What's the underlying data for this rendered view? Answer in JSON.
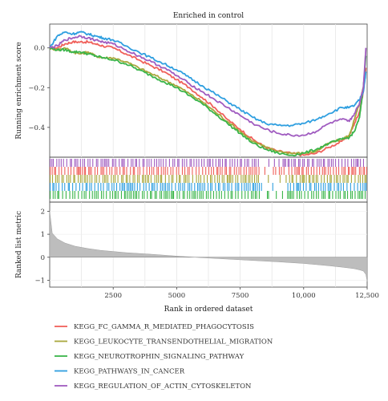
{
  "chart_data": {
    "type": "line",
    "title": "Enriched in control",
    "xlabel": "Rank in ordered dataset",
    "ylabel_top": "Running enrichment score",
    "ylabel_bottom": "Ranked list metric",
    "xlim": [
      0,
      12500
    ],
    "x_ticks": [
      2500,
      5000,
      7500,
      10000,
      12500
    ],
    "x_tick_labels": [
      "2500",
      "5000",
      "7500",
      "10,000",
      "12,500"
    ],
    "es_ylim": [
      -0.55,
      0.12
    ],
    "es_ticks": [
      0.0,
      -0.2,
      -0.4
    ],
    "es_tick_labels": [
      "0.0",
      "−0.2",
      "−0.4"
    ],
    "metric_ylim": [
      -1.3,
      2.4
    ],
    "metric_ticks": [
      2,
      1,
      0,
      -1
    ],
    "metric_tick_labels": [
      "2",
      "1",
      "0",
      "−1"
    ],
    "grid": true,
    "legend_position": "bottom",
    "series": [
      {
        "name": "KEGG_FC_GAMMA_R_MEDIATED_PHAGOCYTOSIS",
        "color": "#f0605a",
        "x": [
          0,
          300,
          600,
          900,
          1200,
          1500,
          1800,
          2100,
          2500,
          3000,
          3500,
          4000,
          4500,
          5000,
          5500,
          6000,
          6500,
          7000,
          7500,
          8000,
          8500,
          9000,
          9500,
          10000,
          10500,
          11000,
          11500,
          11800,
          12000,
          12200,
          12350,
          12450
        ],
        "y": [
          0.0,
          0.0,
          0.02,
          0.03,
          0.03,
          0.03,
          0.02,
          0.01,
          0.0,
          -0.03,
          -0.06,
          -0.09,
          -0.12,
          -0.16,
          -0.2,
          -0.25,
          -0.3,
          -0.36,
          -0.41,
          -0.46,
          -0.5,
          -0.52,
          -0.53,
          -0.54,
          -0.53,
          -0.5,
          -0.47,
          -0.44,
          -0.38,
          -0.32,
          -0.22,
          -0.1
        ]
      },
      {
        "name": "KEGG_LEUKOCYTE_TRANSENDOTHELIAL_MIGRATION",
        "color": "#a9a73c",
        "x": [
          0,
          300,
          600,
          900,
          1200,
          1500,
          1800,
          2100,
          2500,
          3000,
          3500,
          4000,
          4500,
          5000,
          5500,
          6000,
          6500,
          7000,
          7500,
          8000,
          8500,
          9000,
          9500,
          10000,
          10500,
          11000,
          11500,
          11800,
          12000,
          12200,
          12350,
          12450
        ],
        "y": [
          0.0,
          -0.01,
          0.0,
          -0.02,
          -0.03,
          -0.02,
          -0.04,
          -0.05,
          -0.05,
          -0.07,
          -0.1,
          -0.13,
          -0.16,
          -0.19,
          -0.23,
          -0.27,
          -0.32,
          -0.37,
          -0.42,
          -0.47,
          -0.5,
          -0.52,
          -0.53,
          -0.53,
          -0.52,
          -0.48,
          -0.46,
          -0.44,
          -0.36,
          -0.28,
          -0.2,
          -0.12
        ]
      },
      {
        "name": "KEGG_NEUROTROPHIN_SIGNALING_PATHWAY",
        "color": "#3ab54a",
        "x": [
          0,
          300,
          600,
          900,
          1200,
          1500,
          1800,
          2100,
          2500,
          3000,
          3500,
          4000,
          4500,
          5000,
          5500,
          6000,
          6500,
          7000,
          7500,
          8000,
          8500,
          9000,
          9500,
          10000,
          10500,
          11000,
          11500,
          11800,
          12000,
          12200,
          12350,
          12450
        ],
        "y": [
          0.0,
          -0.01,
          -0.01,
          -0.02,
          -0.02,
          -0.03,
          -0.04,
          -0.05,
          -0.06,
          -0.08,
          -0.11,
          -0.14,
          -0.17,
          -0.2,
          -0.24,
          -0.28,
          -0.33,
          -0.38,
          -0.43,
          -0.48,
          -0.51,
          -0.53,
          -0.54,
          -0.53,
          -0.51,
          -0.48,
          -0.46,
          -0.45,
          -0.42,
          -0.35,
          -0.2,
          -0.04
        ]
      },
      {
        "name": "KEGG_PATHWAYS_IN_CANCER",
        "color": "#2f9fe0",
        "x": [
          0,
          300,
          600,
          900,
          1200,
          1500,
          1800,
          2100,
          2500,
          3000,
          3500,
          4000,
          4500,
          5000,
          5500,
          6000,
          6500,
          7000,
          7500,
          8000,
          8500,
          9000,
          9500,
          10000,
          10500,
          11000,
          11500,
          11800,
          12000,
          12200,
          12350,
          12450
        ],
        "y": [
          0.0,
          0.06,
          0.08,
          0.07,
          0.08,
          0.07,
          0.06,
          0.05,
          0.04,
          0.01,
          -0.02,
          -0.05,
          -0.08,
          -0.11,
          -0.15,
          -0.19,
          -0.23,
          -0.27,
          -0.31,
          -0.35,
          -0.38,
          -0.39,
          -0.39,
          -0.38,
          -0.36,
          -0.33,
          -0.3,
          -0.3,
          -0.29,
          -0.26,
          -0.22,
          -0.12
        ]
      },
      {
        "name": "KEGG_REGULATION_OF_ACTIN_CYTOSKELETON",
        "color": "#a05cc0",
        "x": [
          0,
          300,
          600,
          900,
          1200,
          1500,
          1800,
          2100,
          2500,
          3000,
          3500,
          4000,
          4500,
          5000,
          5500,
          6000,
          6500,
          7000,
          7500,
          8000,
          8500,
          9000,
          9500,
          10000,
          10500,
          11000,
          11500,
          11800,
          12000,
          12200,
          12350,
          12450
        ],
        "y": [
          0.0,
          0.01,
          0.04,
          0.05,
          0.06,
          0.05,
          0.04,
          0.03,
          0.02,
          -0.01,
          -0.04,
          -0.07,
          -0.1,
          -0.14,
          -0.18,
          -0.22,
          -0.26,
          -0.3,
          -0.34,
          -0.38,
          -0.41,
          -0.43,
          -0.44,
          -0.44,
          -0.42,
          -0.38,
          -0.36,
          -0.37,
          -0.33,
          -0.28,
          -0.2,
          0.0
        ]
      }
    ],
    "hit_colors_top_to_bottom": [
      "#a05cc0",
      "#f0605a",
      "#a9a73c",
      "#2f9fe0",
      "#3ab54a"
    ],
    "metric_curve": {
      "x": [
        0,
        100,
        300,
        600,
        1000,
        1500,
        2000,
        3000,
        4000,
        5000,
        6000,
        7000,
        8000,
        9000,
        10000,
        10500,
        11000,
        11500,
        11800,
        12000,
        12200,
        12350,
        12450,
        12500
      ],
      "y": [
        2.0,
        1.05,
        0.8,
        0.62,
        0.48,
        0.38,
        0.3,
        0.2,
        0.13,
        0.05,
        -0.02,
        -0.08,
        -0.14,
        -0.2,
        -0.27,
        -0.32,
        -0.37,
        -0.43,
        -0.47,
        -0.5,
        -0.55,
        -0.6,
        -0.75,
        -1.05
      ]
    }
  }
}
